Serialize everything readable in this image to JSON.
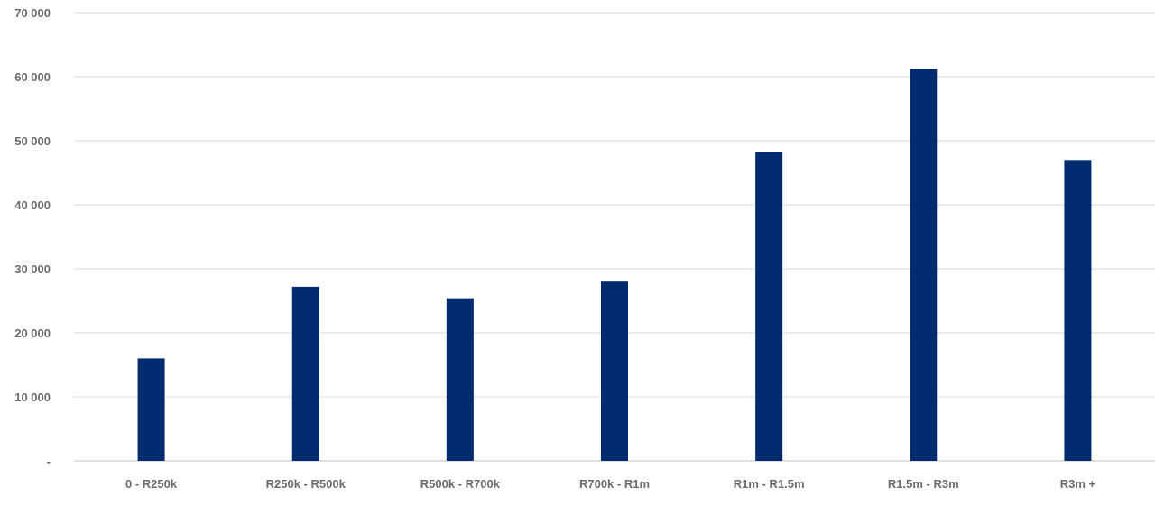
{
  "chart_data": {
    "type": "bar",
    "title": "",
    "xlabel": "",
    "ylabel": "",
    "categories": [
      "0 - R250k",
      "R250k - R500k",
      "R500k - R700k",
      "R700k - R1m",
      "R1m - R1.5m",
      "R1.5m - R3m",
      "R3m +"
    ],
    "values": [
      16000,
      27200,
      25400,
      28000,
      48300,
      61200,
      47000
    ],
    "ylim": [
      0,
      70000
    ],
    "yticks": [
      0,
      10000,
      20000,
      30000,
      40000,
      50000,
      60000,
      70000
    ],
    "ytick_labels": [
      "-",
      "10 000",
      "20 000",
      "30 000",
      "40 000",
      "50 000",
      "60 000",
      "70 000"
    ],
    "grid": true,
    "legend": "none",
    "bar_color": "#002b6f"
  }
}
